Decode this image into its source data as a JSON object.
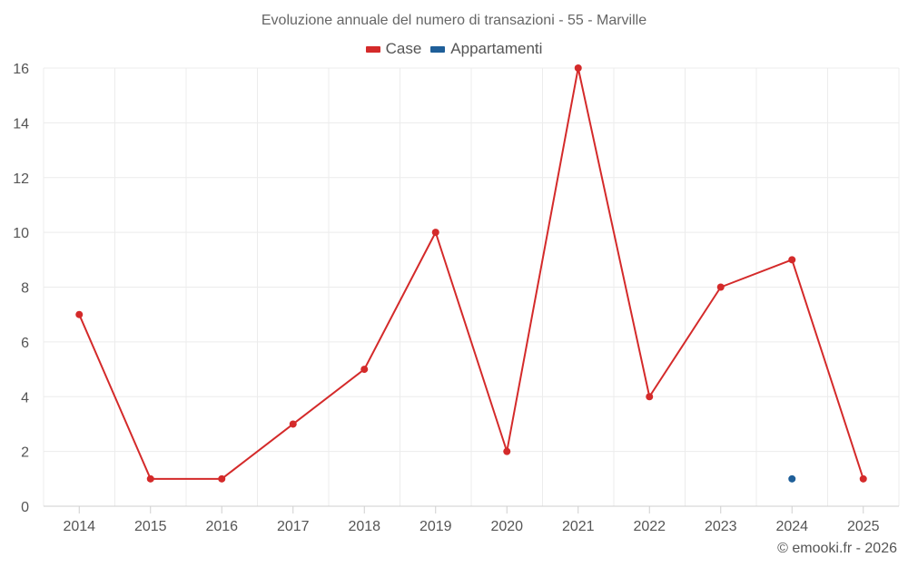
{
  "chart_data": {
    "type": "line",
    "title": "Evoluzione annuale del numero di transazioni - 55 - Marville",
    "categories": [
      "2014",
      "2015",
      "2016",
      "2017",
      "2018",
      "2019",
      "2020",
      "2021",
      "2022",
      "2023",
      "2024",
      "2025"
    ],
    "series": [
      {
        "name": "Case",
        "color": "#d42a2a",
        "values": [
          7,
          1,
          1,
          3,
          5,
          10,
          2,
          16,
          4,
          8,
          9,
          1
        ]
      },
      {
        "name": "Appartamenti",
        "color": "#1f5f99",
        "values": [
          null,
          null,
          null,
          null,
          null,
          null,
          null,
          null,
          null,
          null,
          1,
          null
        ]
      }
    ],
    "ylim": [
      0,
      16
    ],
    "yticks": [
      0,
      2,
      4,
      6,
      8,
      10,
      12,
      14,
      16
    ],
    "xlabel": "",
    "ylabel": "",
    "grid": true,
    "legend_position": "top-center"
  },
  "footer": {
    "copyright": "© emooki.fr - 2026"
  }
}
